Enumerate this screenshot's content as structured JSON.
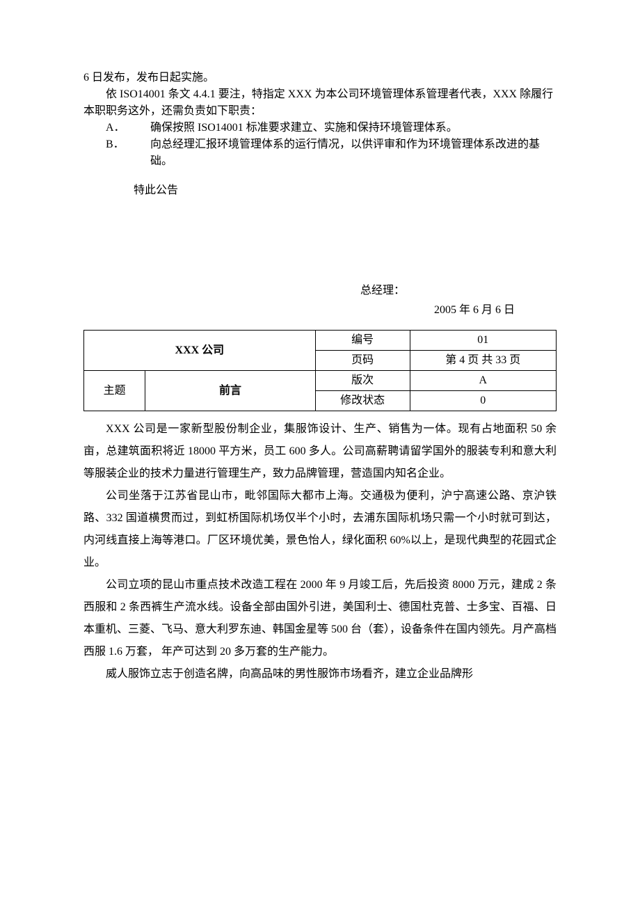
{
  "top": {
    "line1": "6 日发布，发布日起实施。",
    "line2": "依 ISO14001 条文 4.4.1 要注，特指定 XXX 为本公司环境管理体系管理者代表，XXX 除履行本职职务这外，还需负责如下职责：",
    "itemA_label": "A．",
    "itemA_text": "确保按照 ISO14001 标准要求建立、实施和保持环境管理体系。",
    "itemB_label": "B．",
    "itemB_text": "向总经理汇报环境管理体系的运行情况，以供评审和作为环境管理体系改进的基础。",
    "notice": "特此公告"
  },
  "sig": {
    "role": "总经理：",
    "date": "2005 年 6 月 6 日"
  },
  "table": {
    "company": "XXX 公司",
    "label_number": "编号",
    "number": "01",
    "label_page": "页码",
    "page": "第 4 页 共 33 页",
    "label_subject": "主题",
    "subject": "前言",
    "label_version": "版次",
    "version": "A",
    "label_revstate": "修改状态",
    "revstate": "0",
    "col_widths": [
      "13%",
      "36%",
      "20%",
      "31%"
    ]
  },
  "body": {
    "p1": "XXX 公司是一家新型股份制企业，集服饰设计、生产、销售为一体。现有占地面积 50 余亩，总建筑面积将近 18000 平方米，员工 600 多人。公司高薪聘请留学国外的服装专利和意大利等服装企业的技术力量进行管理生产，致力品牌管理，营造国内知名企业。",
    "p2": "公司坐落于江苏省昆山市，毗邻国际大都市上海。交通极为便利，沪宁高速公路、京沪铁路、332 国道横贯而过，到虹桥国际机场仅半个小时，去浦东国际机场只需一个小时就可到达，内河线直接上海等港口。厂区环境优美，景色怡人，绿化面积 60%以上，是现代典型的花园式企业。",
    "p3": "公司立项的昆山市重点技术改造工程在 2000 年 9 月竣工后，先后投资 8000 万元，建成 2 条西服和 2 条西裤生产流水线。设备全部由国外引进，美国利士、德国杜克普、士多宝、百福、日本重机、三菱、飞马、意大利罗东迪、韩国金星等 500 台（套），设备条件在国内领先。月产高档西服 1.6 万套，  年产可达到 20 多万套的生产能力。",
    "p4": "威人服饰立志于创造名牌，向高品味的男性服饰市场看齐，建立企业品牌形"
  }
}
